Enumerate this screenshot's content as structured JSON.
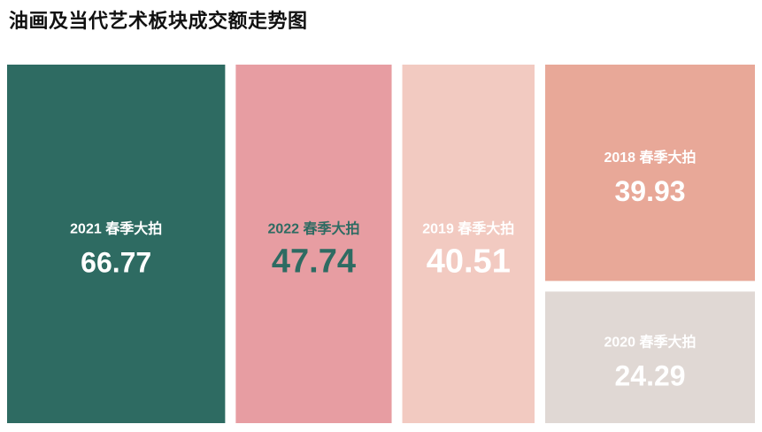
{
  "chart_data": {
    "type": "treemap",
    "title": "油画及当代艺术板块成交额走势图",
    "items": [
      {
        "label": "2021 春季大拍",
        "value": 66.77,
        "value_text": "66.77",
        "color": "#2e6b62",
        "text_color": "#ffffff"
      },
      {
        "label": "2022 春季大拍",
        "value": 47.74,
        "value_text": "47.74",
        "color": "#e79da2",
        "text_color": "#2e6b62"
      },
      {
        "label": "2019 春季大拍",
        "value": 40.51,
        "value_text": "40.51",
        "color": "#f2cac1",
        "text_color": "#ffffff"
      },
      {
        "label": "2018 春季大拍",
        "value": 39.93,
        "value_text": "39.93",
        "color": "#e8a898",
        "text_color": "#ffffff"
      },
      {
        "label": "2020 春季大拍",
        "value": 24.29,
        "value_text": "24.29",
        "color": "#e0d8d4",
        "text_color": "#ffffff"
      }
    ]
  }
}
